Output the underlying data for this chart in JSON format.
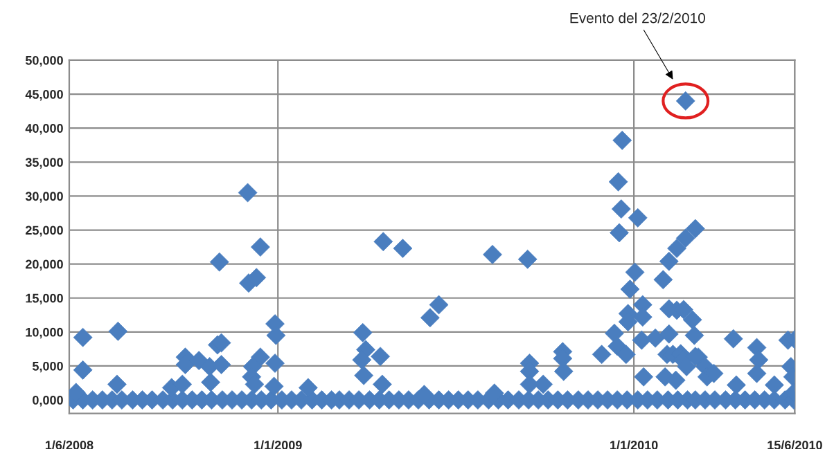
{
  "chart_data": {
    "type": "scatter",
    "x": [
      "2008-06-05",
      "2008-06-15",
      "2008-06-25",
      "2008-07-05",
      "2008-07-15",
      "2008-07-25",
      "2008-08-05",
      "2008-08-15",
      "2008-08-25",
      "2008-09-05",
      "2008-09-15",
      "2008-09-25",
      "2008-10-05",
      "2008-10-15",
      "2008-10-25",
      "2008-11-05",
      "2008-11-15",
      "2008-11-25",
      "2008-12-05",
      "2008-12-15",
      "2008-12-25",
      "2009-01-05",
      "2009-01-15",
      "2009-01-25",
      "2009-02-05",
      "2009-02-15",
      "2009-02-25",
      "2009-03-05",
      "2009-03-15",
      "2009-03-25",
      "2009-04-05",
      "2009-04-15",
      "2009-04-25",
      "2009-05-05",
      "2009-05-15",
      "2009-05-25",
      "2009-06-05",
      "2009-06-15",
      "2009-06-25",
      "2009-07-05",
      "2009-07-15",
      "2009-07-25",
      "2009-08-05",
      "2009-08-15",
      "2009-08-25",
      "2009-09-05",
      "2009-09-15",
      "2009-09-25",
      "2009-10-05",
      "2009-10-15",
      "2009-10-25",
      "2009-11-05",
      "2009-11-15",
      "2009-11-25",
      "2009-12-05",
      "2009-12-15",
      "2009-12-25",
      "2010-01-05",
      "2010-01-15",
      "2010-01-25",
      "2010-02-05",
      "2010-02-15",
      "2010-02-25",
      "2010-03-05",
      "2010-03-15",
      "2010-03-25",
      "2010-04-05",
      "2010-04-15",
      "2010-04-25",
      "2010-05-05",
      "2010-05-15",
      "2010-05-25",
      "2010-06-05",
      "2010-06-14",
      "2008-06-15",
      "2008-06-15",
      "2008-06-08",
      "2008-07-21",
      "2008-07-20",
      "2008-09-14",
      "2008-09-25",
      "2008-09-28",
      "2008-09-28",
      "2008-10-12",
      "2008-10-23",
      "2008-10-24",
      "2008-10-31",
      "2008-11-04",
      "2008-11-04",
      "2008-11-02",
      "2008-12-01",
      "2008-12-02",
      "2008-12-10",
      "2008-12-14",
      "2008-12-14",
      "2008-12-06",
      "2008-12-05",
      "2008-12-08",
      "2008-12-29",
      "2008-12-30",
      "2008-12-29",
      "2008-12-28",
      "2009-02-01",
      "2009-03-29",
      "2009-04-01",
      "2009-03-28",
      "2009-03-30",
      "2009-04-16",
      "2009-04-19",
      "2009-05-09",
      "2009-04-18",
      "2009-06-06",
      "2009-06-15",
      "2009-08-09",
      "2009-05-31",
      "2009-08-11",
      "2009-09-14",
      "2009-09-16",
      "2009-09-16",
      "2009-09-16",
      "2009-09-30",
      "2009-10-20",
      "2009-10-20",
      "2009-10-21",
      "2009-11-29",
      "2009-12-12",
      "2009-12-15",
      "2009-12-24",
      "2009-12-20",
      "2009-12-16",
      "2009-12-19",
      "2009-12-17",
      "2010-01-05",
      "2010-01-02",
      "2009-12-28",
      "2009-12-26",
      "2009-12-26",
      "2010-01-10",
      "2010-01-10",
      "2010-01-09",
      "2010-01-23",
      "2010-01-11",
      "2010-01-31",
      "2010-02-06",
      "2010-02-14",
      "2010-02-23",
      "2010-03-05",
      "2010-02-23",
      "2010-02-06",
      "2010-02-14",
      "2010-02-21",
      "2010-03-02",
      "2010-03-04",
      "2010-02-06",
      "2010-02-04",
      "2010-02-10",
      "2010-02-18",
      "2010-02-02",
      "2010-02-13",
      "2010-02-20",
      "2010-02-24",
      "2010-03-08",
      "2010-03-05",
      "2010-03-15",
      "2010-03-17",
      "2010-03-24",
      "2010-04-13",
      "2010-05-07",
      "2010-05-09",
      "2010-05-07",
      "2010-04-16",
      "2010-05-25",
      "2010-06-08",
      "2010-06-15",
      "2010-06-11",
      "2010-06-13",
      "2010-06-14"
    ],
    "values": [
      0,
      0,
      0,
      0,
      0,
      0,
      0,
      0,
      0,
      0,
      0,
      0,
      0,
      0,
      0,
      0,
      0,
      0,
      0,
      0,
      0,
      0,
      0,
      0,
      0,
      0,
      0,
      0,
      0,
      0,
      0,
      0,
      0,
      0,
      0,
      0,
      0,
      0,
      0,
      0,
      0,
      0,
      0,
      0,
      0,
      0,
      0,
      0,
      0,
      0,
      0,
      0,
      0,
      0,
      0,
      0,
      0,
      0,
      0,
      0,
      0,
      0,
      0,
      0,
      0,
      0,
      0,
      0,
      0,
      0,
      0,
      0,
      0,
      0,
      9200,
      4400,
      1100,
      10100,
      2300,
      1800,
      2300,
      6300,
      5200,
      5800,
      4900,
      2600,
      8100,
      8400,
      5200,
      20300,
      30500,
      17200,
      18000,
      22500,
      6300,
      4900,
      3400,
      2300,
      11200,
      9500,
      5400,
      2000,
      1800,
      9900,
      7400,
      5900,
      3600,
      6400,
      23300,
      22300,
      2300,
      12100,
      14000,
      21400,
      800,
      1000,
      20700,
      5400,
      4200,
      2300,
      2300,
      7100,
      6100,
      4200,
      6700,
      9800,
      7900,
      6700,
      38200,
      32100,
      28100,
      24600,
      26800,
      18800,
      16300,
      12700,
      11500,
      14000,
      12200,
      8800,
      9100,
      3400,
      17700,
      20400,
      22300,
      23800,
      25200,
      44000,
      13400,
      13200,
      13300,
      11800,
      9500,
      9700,
      6700,
      6700,
      6800,
      3400,
      2900,
      5900,
      4900,
      6300,
      6400,
      4900,
      3400,
      3900,
      9000,
      7700,
      5900,
      3900,
      2200,
      2200,
      8800,
      8900,
      4900,
      3400,
      1100
    ],
    "color": "#4a7ebf",
    "marker": "diamond",
    "xlim": [
      "2008-06-01",
      "2010-06-15"
    ],
    "xticks": [
      {
        "value": "2008-06-01",
        "label": "1/6/2008"
      },
      {
        "value": "2009-01-01",
        "label": "1/1/2009"
      },
      {
        "value": "2010-01-01",
        "label": "1/1/2010"
      },
      {
        "value": "2010-06-15",
        "label": "15/6/2010"
      }
    ],
    "ylim": [
      -2000,
      50000
    ],
    "yticks": [
      {
        "value": 0,
        "label": "0,000"
      },
      {
        "value": 5000,
        "label": "5,000"
      },
      {
        "value": 10000,
        "label": "10,000"
      },
      {
        "value": 15000,
        "label": "15,000"
      },
      {
        "value": 20000,
        "label": "20,000"
      },
      {
        "value": 25000,
        "label": "25,000"
      },
      {
        "value": 30000,
        "label": "30,000"
      },
      {
        "value": 35000,
        "label": "35,000"
      },
      {
        "value": 40000,
        "label": "40,000"
      },
      {
        "value": 45000,
        "label": "45,000"
      },
      {
        "value": 50000,
        "label": "50,000"
      }
    ],
    "grid": true,
    "annotations": [
      "Evento del 23/2/2010"
    ]
  }
}
